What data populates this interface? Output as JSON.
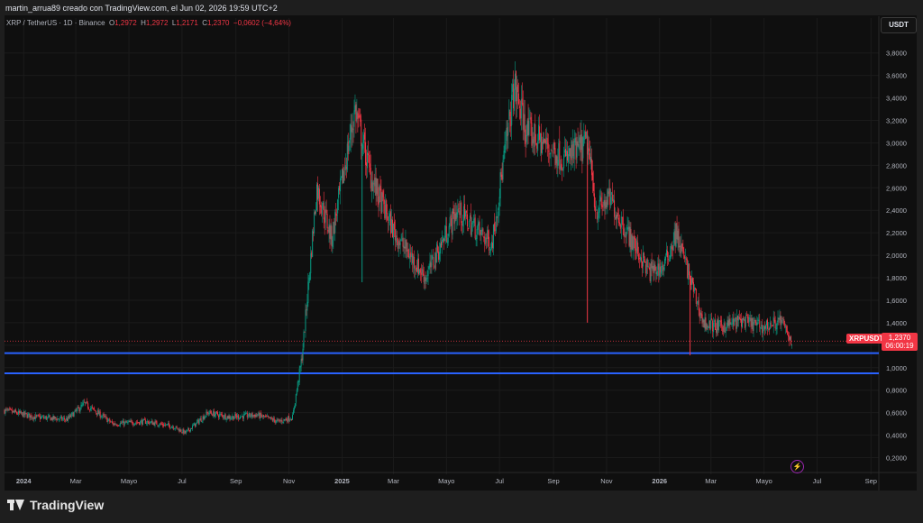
{
  "header": {
    "credit": "martin_arrua89 creado con TradingView.com, el Jun 02, 2026 19:59 UTC+2"
  },
  "legend": {
    "symbol": "XRP / TetherUS · 1D · Binance",
    "open_label": "O",
    "open": "1,2972",
    "high_label": "H",
    "high": "1,2972",
    "low_label": "L",
    "low": "1,2171",
    "close_label": "C",
    "close": "1,2370",
    "change": "−0,0602 (−4,64%)"
  },
  "currency_button": "USDT",
  "price_tag": {
    "ticker": "XRPUSDT",
    "price": "1,2370",
    "countdown": "06:00:19"
  },
  "footer": {
    "brand": "TradingView"
  },
  "chart_data": {
    "type": "line",
    "style": "candlestick",
    "colors": {
      "up": "#089981",
      "down": "#f23645",
      "horizontal_lines": "#2962ff",
      "background": "#0f0f0f"
    },
    "y_ticks": [
      "3,8000",
      "3,6000",
      "3,4000",
      "3,2000",
      "3,0000",
      "2,8000",
      "2,6000",
      "2,4000",
      "2,2000",
      "2,0000",
      "1,8000",
      "1,6000",
      "1,4000",
      "1,2000",
      "1,0000",
      "0,8000",
      "0,6000",
      "0,4000",
      "0,2000"
    ],
    "y_tick_values": [
      3.8,
      3.6,
      3.4,
      3.2,
      3.0,
      2.8,
      2.6,
      2.4,
      2.2,
      2.0,
      1.8,
      1.6,
      1.4,
      1.2,
      1.0,
      0.8,
      0.6,
      0.4,
      0.2
    ],
    "ylim": [
      0.1,
      3.95
    ],
    "x_ticks": [
      "2024",
      "Mar",
      "Mayo",
      "Jul",
      "Sep",
      "Nov",
      "2025",
      "Mar",
      "Mayo",
      "Jul",
      "Sep",
      "Nov",
      "2026",
      "Mar",
      "Mayo",
      "Jul",
      "Sep"
    ],
    "x_tick_dates": [
      "2024-01-01",
      "2024-03-01",
      "2024-05-01",
      "2024-07-01",
      "2024-09-01",
      "2024-11-01",
      "2025-01-01",
      "2025-03-01",
      "2025-05-01",
      "2025-07-01",
      "2025-09-01",
      "2025-11-01",
      "2026-01-01",
      "2026-03-01",
      "2026-05-01",
      "2026-07-01",
      "2026-09-01"
    ],
    "xlim": [
      "2023-12-10",
      "2026-09-10"
    ],
    "horizontal_lines": [
      1.13,
      0.95
    ],
    "last_price": 1.237,
    "series": [
      {
        "x": [
          "2023-12-10",
          "2024-01-15",
          "2024-02-20",
          "2024-03-11",
          "2024-04-13",
          "2024-05-20",
          "2024-06-20",
          "2024-07-05",
          "2024-07-31",
          "2024-08-25",
          "2024-09-25",
          "2024-10-20",
          "2024-11-05",
          "2024-11-16",
          "2024-12-03",
          "2024-12-20",
          "2025-01-16",
          "2025-02-03",
          "2025-03-02",
          "2025-04-07",
          "2025-05-13",
          "2025-06-22",
          "2025-07-18",
          "2025-08-01",
          "2025-08-20",
          "2025-09-15",
          "2025-10-10",
          "2025-10-20",
          "2025-11-05",
          "2025-11-25",
          "2025-12-20",
          "2026-01-06",
          "2026-01-20",
          "2026-02-05",
          "2026-02-20",
          "2026-03-10",
          "2026-04-05",
          "2026-05-01",
          "2026-05-20",
          "2026-06-02"
        ],
        "y": [
          0.62,
          0.56,
          0.54,
          0.68,
          0.5,
          0.52,
          0.48,
          0.42,
          0.6,
          0.56,
          0.58,
          0.52,
          0.56,
          1.1,
          2.6,
          2.15,
          3.3,
          2.7,
          2.2,
          1.8,
          2.4,
          2.1,
          3.5,
          3.1,
          3.0,
          2.85,
          3.0,
          2.4,
          2.5,
          2.2,
          1.85,
          1.9,
          2.2,
          1.8,
          1.4,
          1.36,
          1.42,
          1.36,
          1.42,
          1.237
        ]
      }
    ]
  }
}
